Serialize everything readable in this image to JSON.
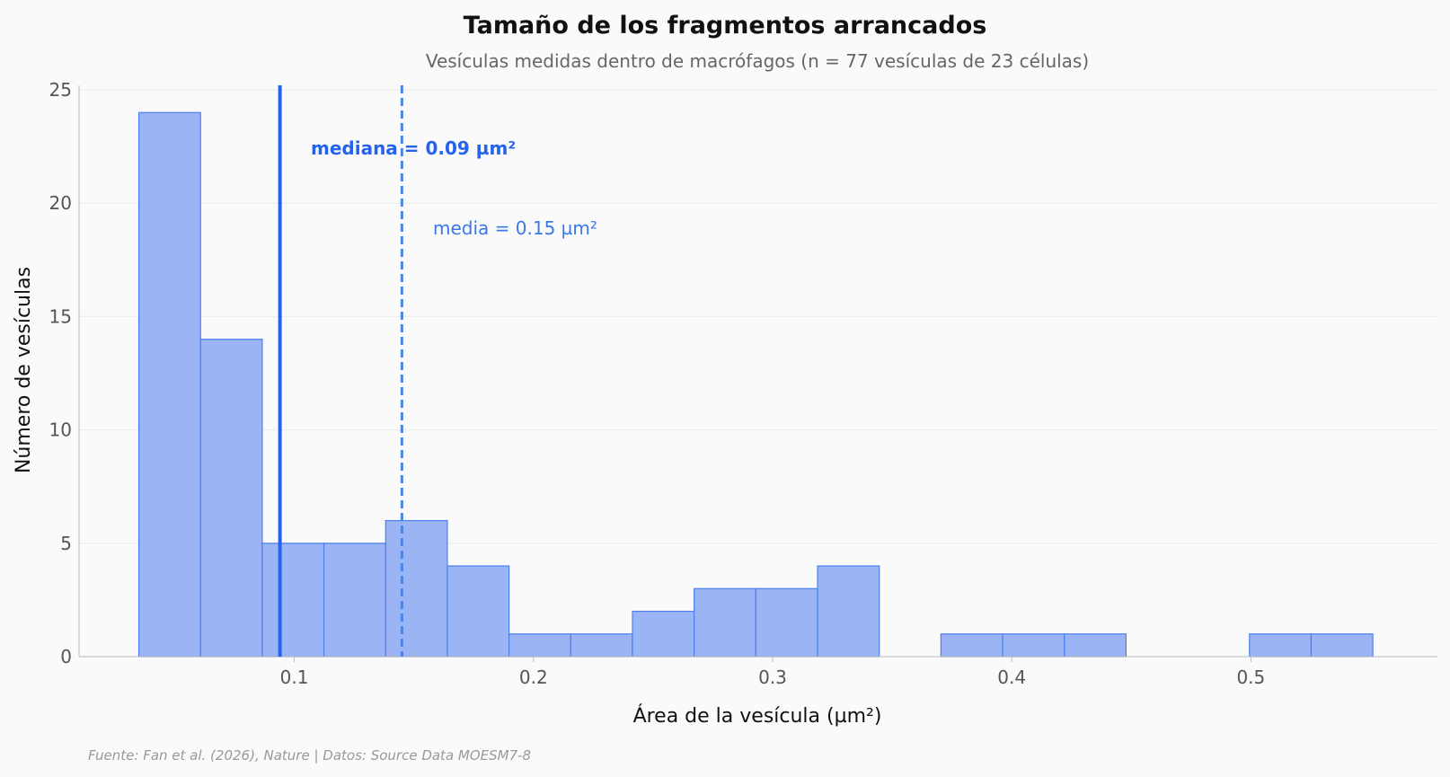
{
  "chart_data": {
    "type": "bar",
    "title": "Tamaño de los fragmentos arrancados",
    "subtitle": "Vesículas medidas dentro de macrófagos (n = 77 vesículas de 23 células)",
    "xlabel": "Área de la vesícula (µm²)",
    "ylabel": "Número de vesículas",
    "xlim": [
      0.01,
      0.578
    ],
    "ylim": [
      0,
      25.2
    ],
    "xticks": [
      0.1,
      0.2,
      0.3,
      0.4,
      0.5
    ],
    "xtick_labels": [
      "0.1",
      "0.2",
      "0.3",
      "0.4",
      "0.5"
    ],
    "yticks": [
      0,
      5,
      10,
      15,
      20,
      25
    ],
    "ytick_labels": [
      "0",
      "5",
      "10",
      "15",
      "20",
      "25"
    ],
    "grid": "horizontal",
    "bins": [
      {
        "x0": 0.035,
        "x1": 0.0608,
        "count": 24
      },
      {
        "x0": 0.0608,
        "x1": 0.0866,
        "count": 14
      },
      {
        "x0": 0.0866,
        "x1": 0.1124,
        "count": 5
      },
      {
        "x0": 0.1124,
        "x1": 0.1382,
        "count": 5
      },
      {
        "x0": 0.1382,
        "x1": 0.164,
        "count": 6
      },
      {
        "x0": 0.164,
        "x1": 0.1898,
        "count": 4
      },
      {
        "x0": 0.1898,
        "x1": 0.2156,
        "count": 1
      },
      {
        "x0": 0.2156,
        "x1": 0.2414,
        "count": 1
      },
      {
        "x0": 0.2414,
        "x1": 0.2672,
        "count": 2
      },
      {
        "x0": 0.2672,
        "x1": 0.293,
        "count": 3
      },
      {
        "x0": 0.293,
        "x1": 0.3188,
        "count": 3
      },
      {
        "x0": 0.3188,
        "x1": 0.3446,
        "count": 4
      },
      {
        "x0": 0.3446,
        "x1": 0.3704,
        "count": 0
      },
      {
        "x0": 0.3704,
        "x1": 0.3962,
        "count": 1
      },
      {
        "x0": 0.3962,
        "x1": 0.422,
        "count": 1
      },
      {
        "x0": 0.422,
        "x1": 0.4478,
        "count": 1
      },
      {
        "x0": 0.4478,
        "x1": 0.4736,
        "count": 0
      },
      {
        "x0": 0.4736,
        "x1": 0.4994,
        "count": 0
      },
      {
        "x0": 0.4994,
        "x1": 0.5252,
        "count": 1
      },
      {
        "x0": 0.5252,
        "x1": 0.551,
        "count": 1
      }
    ],
    "median": {
      "value": 0.094,
      "label": "mediana = 0.09 µm²"
    },
    "mean": {
      "value": 0.145,
      "label": "media = 0.15 µm²"
    },
    "source": "Fuente: Fan et al. (2026), Nature | Datos: Source Data MOESM7-8",
    "colors": {
      "bar_fill": "#9bb5f4",
      "bar_stroke": "#4d7ff0",
      "median_line": "#2563eb",
      "mean_line": "#4a86e8",
      "grid": "#ebebeb",
      "axis": "#bbbbbb"
    }
  }
}
